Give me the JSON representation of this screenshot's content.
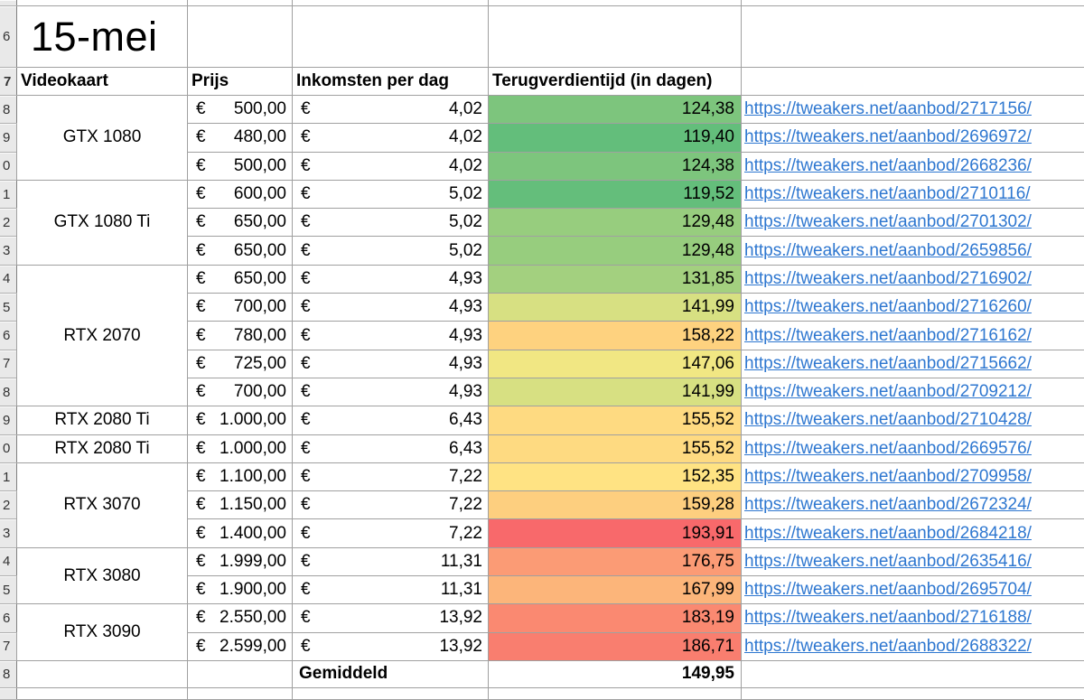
{
  "sheet": {
    "title": "15-mei",
    "title_row_label": "6",
    "header_row_label": "7",
    "currency": "€",
    "columns": {
      "videokaart": "Videokaart",
      "prijs": "Prijs",
      "inkomsten": "Inkomsten per dag",
      "terugverdientijd": "Terugverdientijd (in dagen)"
    },
    "rows": [
      {
        "n": "8",
        "gpu": "GTX 1080",
        "span": 3,
        "price": "500,00",
        "income": "4,02",
        "payback": "124,38",
        "color": "#7DC57D",
        "link": "https://tweakers.net/aanbod/2717156/"
      },
      {
        "n": "9",
        "price": "480,00",
        "income": "4,02",
        "payback": "119,40",
        "color": "#63BE7B",
        "link": "https://tweakers.net/aanbod/2696972/"
      },
      {
        "n": "0",
        "price": "500,00",
        "income": "4,02",
        "payback": "124,38",
        "color": "#7DC57D",
        "link": "https://tweakers.net/aanbod/2668236/"
      },
      {
        "n": "1",
        "gpu": "GTX 1080 Ti",
        "span": 3,
        "price": "600,00",
        "income": "5,02",
        "payback": "119,52",
        "color": "#64BE7B",
        "link": "https://tweakers.net/aanbod/2710116/"
      },
      {
        "n": "2",
        "price": "650,00",
        "income": "5,02",
        "payback": "129,48",
        "color": "#97CD7E",
        "link": "https://tweakers.net/aanbod/2701302/"
      },
      {
        "n": "3",
        "price": "650,00",
        "income": "5,02",
        "payback": "129,48",
        "color": "#97CD7E",
        "link": "https://tweakers.net/aanbod/2659856/"
      },
      {
        "n": "4",
        "gpu": "RTX 2070",
        "span": 5,
        "price": "650,00",
        "income": "4,93",
        "payback": "131,85",
        "color": "#A3D07F",
        "link": "https://tweakers.net/aanbod/2716902/"
      },
      {
        "n": "5",
        "price": "700,00",
        "income": "4,93",
        "payback": "141,99",
        "color": "#D7E082",
        "link": "https://tweakers.net/aanbod/2716260/"
      },
      {
        "n": "6",
        "price": "780,00",
        "income": "4,93",
        "payback": "158,22",
        "color": "#FED27F",
        "link": "https://tweakers.net/aanbod/2716162/"
      },
      {
        "n": "7",
        "price": "725,00",
        "income": "4,93",
        "payback": "147,06",
        "color": "#F1E783",
        "link": "https://tweakers.net/aanbod/2715662/"
      },
      {
        "n": "8",
        "price": "700,00",
        "income": "4,93",
        "payback": "141,99",
        "color": "#D7E082",
        "link": "https://tweakers.net/aanbod/2709212/"
      },
      {
        "n": "9",
        "gpu": "RTX 2080 Ti",
        "span": 1,
        "price": "1.000,00",
        "income": "6,43",
        "payback": "155,52",
        "color": "#FEDA81",
        "link": "https://tweakers.net/aanbod/2710428/"
      },
      {
        "n": "0",
        "gpu": "RTX 2080 Ti",
        "span": 1,
        "price": "1.000,00",
        "income": "6,43",
        "payback": "155,52",
        "color": "#FEDA81",
        "link": "https://tweakers.net/aanbod/2669576/"
      },
      {
        "n": "1",
        "gpu": "RTX 3070",
        "span": 3,
        "price": "1.100,00",
        "income": "7,22",
        "payback": "152,35",
        "color": "#FFE383",
        "link": "https://tweakers.net/aanbod/2709958/"
      },
      {
        "n": "2",
        "price": "1.150,00",
        "income": "7,22",
        "payback": "159,28",
        "color": "#FDCF7F",
        "link": "https://tweakers.net/aanbod/2672324/"
      },
      {
        "n": "3",
        "price": "1.400,00",
        "income": "7,22",
        "payback": "193,91",
        "color": "#F8696B",
        "link": "https://tweakers.net/aanbod/2684218/"
      },
      {
        "n": "4",
        "gpu": "RTX 3080",
        "span": 2,
        "price": "1.999,00",
        "income": "11,31",
        "payback": "176,75",
        "color": "#FB9B75",
        "link": "https://tweakers.net/aanbod/2635416/"
      },
      {
        "n": "5",
        "price": "1.900,00",
        "income": "11,31",
        "payback": "167,99",
        "color": "#FCB57A",
        "link": "https://tweakers.net/aanbod/2695704/"
      },
      {
        "n": "6",
        "gpu": "RTX 3090",
        "span": 2,
        "price": "2.550,00",
        "income": "13,92",
        "payback": "183,19",
        "color": "#FA8971",
        "link": "https://tweakers.net/aanbod/2716188/"
      },
      {
        "n": "7",
        "price": "2.599,00",
        "income": "13,92",
        "payback": "186,71",
        "color": "#F97E6F",
        "link": "https://tweakers.net/aanbod/2688322/"
      }
    ],
    "summary": {
      "row_label": "8",
      "label": "Gemiddeld",
      "value": "149,95"
    }
  },
  "colors": {
    "link_blue": "#2e77d0",
    "gridline": "#a0a0a0",
    "row_header_bg": "#e9e9e9",
    "scale_green": "#63BE7B",
    "scale_yellow": "#FFEB84",
    "scale_red": "#F8696B"
  }
}
